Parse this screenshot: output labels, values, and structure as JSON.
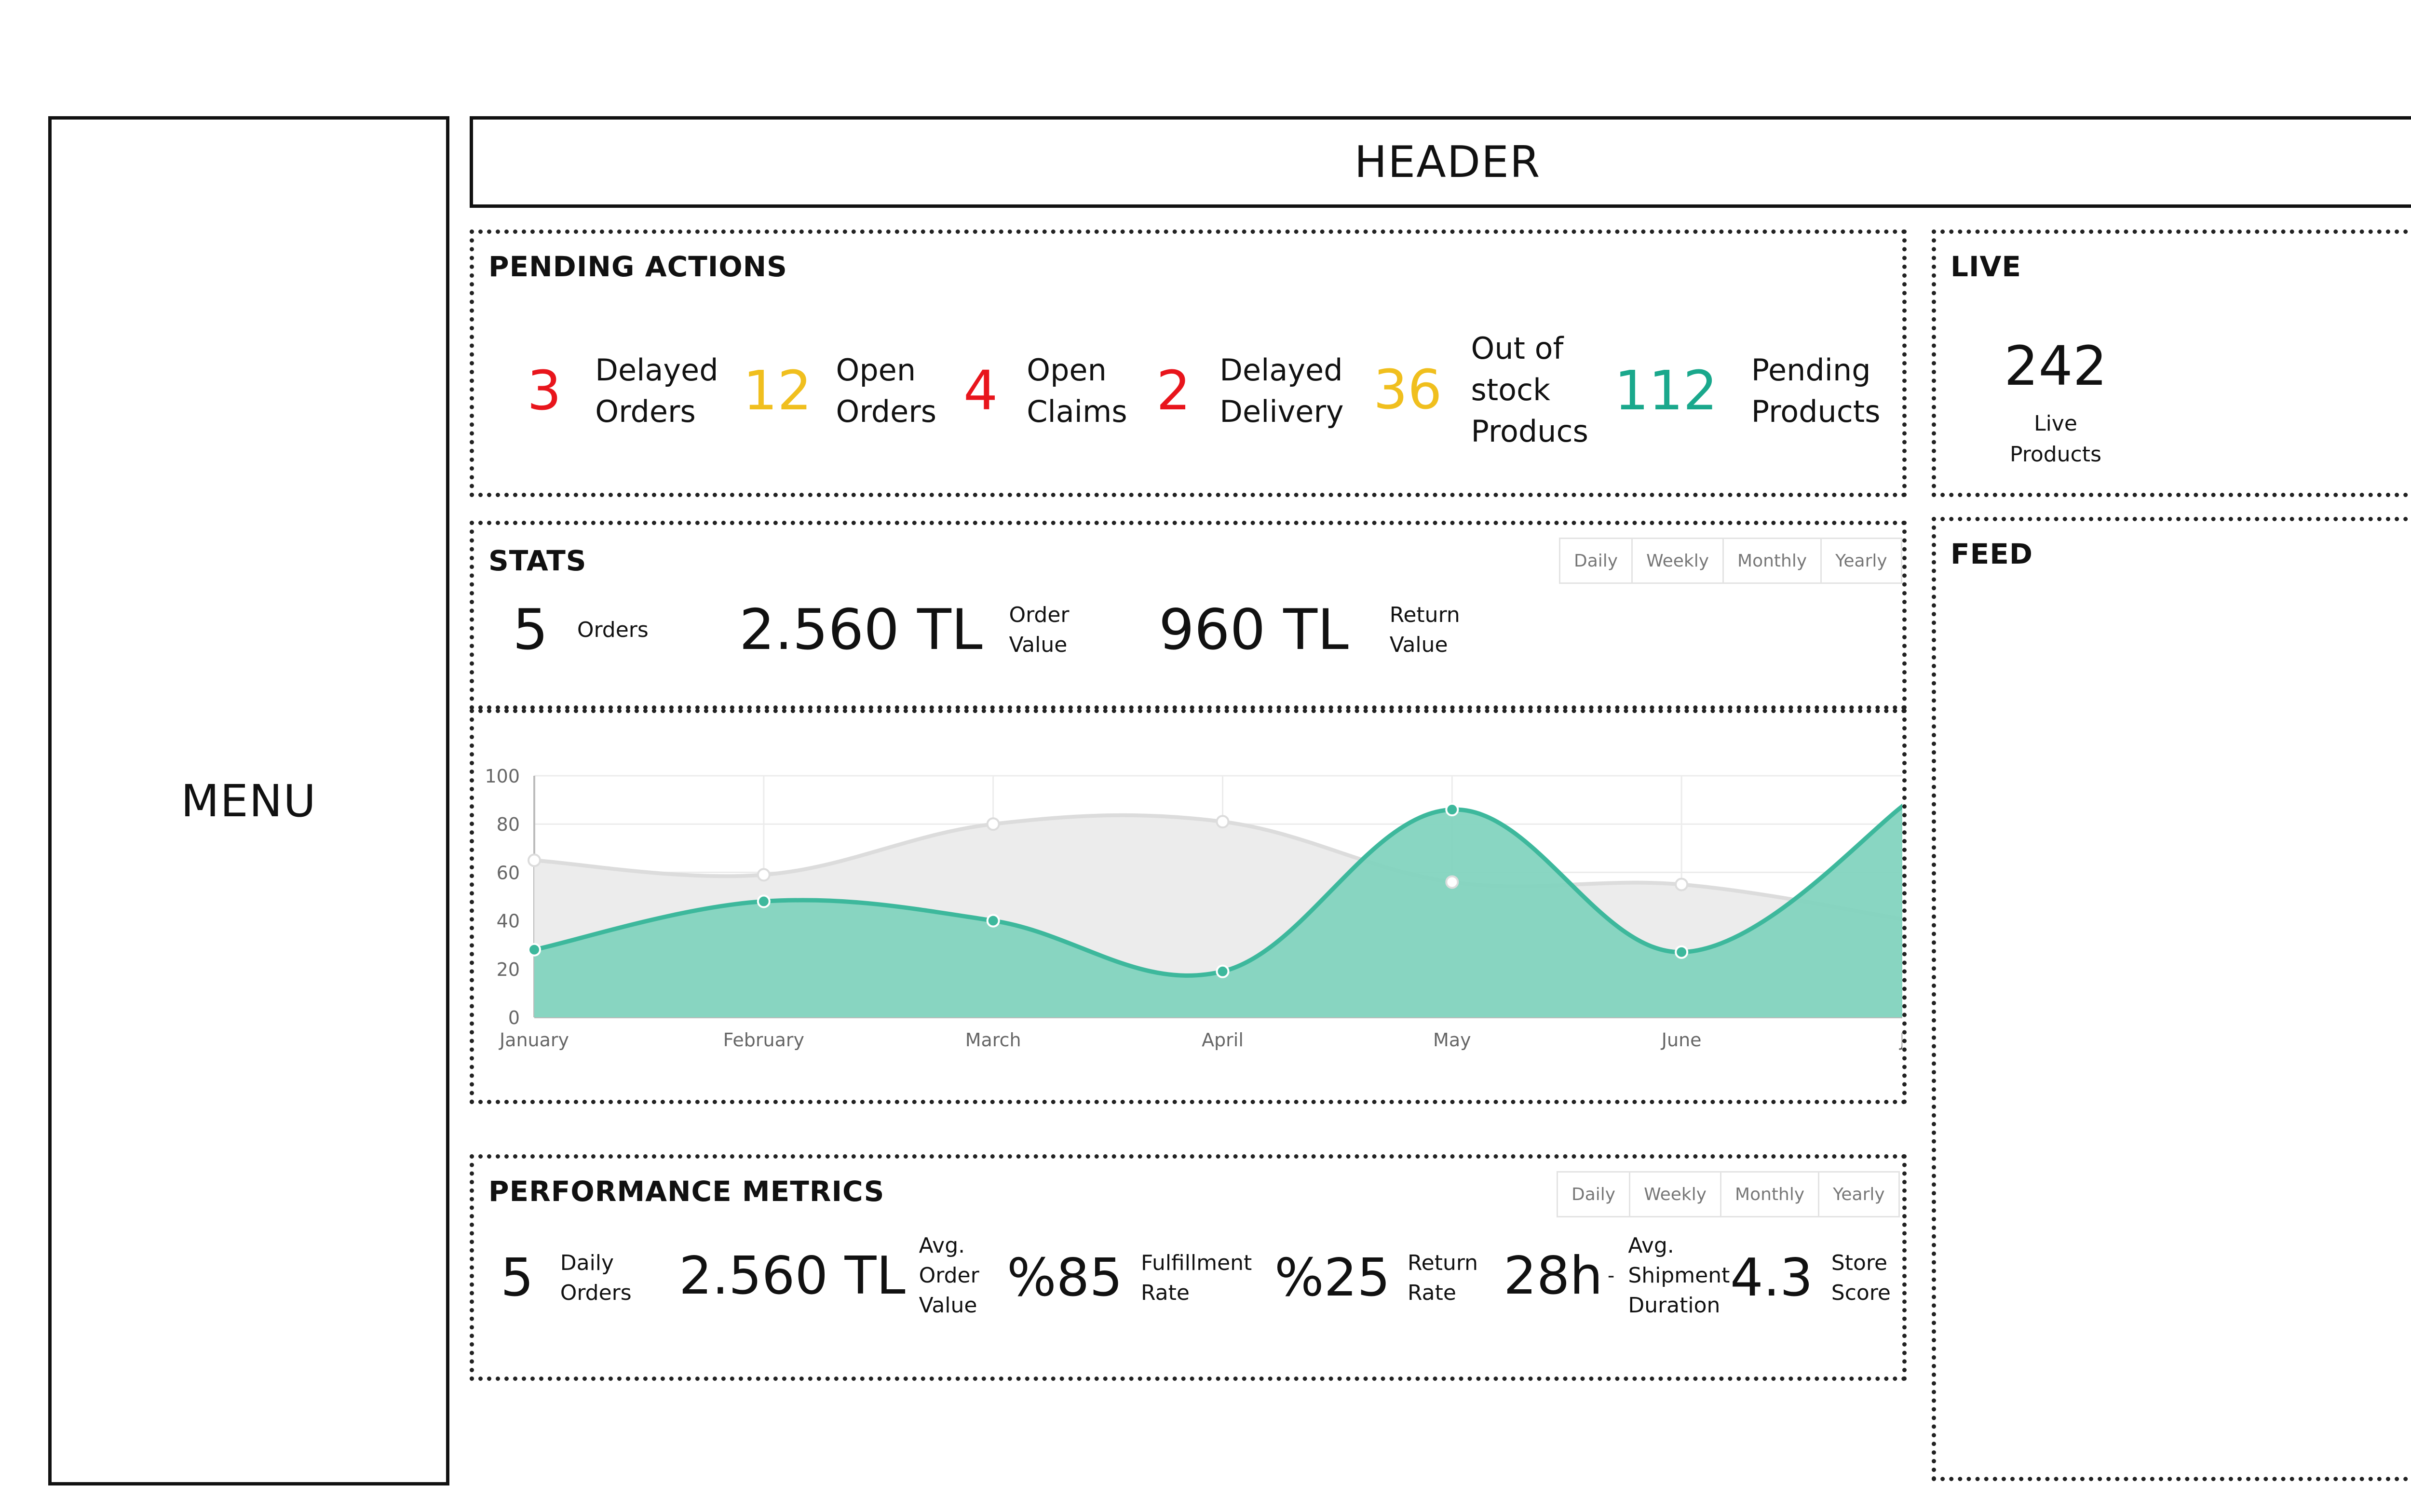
{
  "menu": {
    "label": "MENU"
  },
  "header": {
    "label": "HEADER"
  },
  "pending_actions": {
    "title": "PENDING ACTIONS",
    "items": [
      {
        "value": "3",
        "label_line1": "Delayed",
        "label_line2": "Orders",
        "color": "#e8151c"
      },
      {
        "value": "12",
        "label_line1": "Open",
        "label_line2": "Orders",
        "color": "#f0bf1e"
      },
      {
        "value": "4",
        "label_line1": "Open",
        "label_line2": "Claims",
        "color": "#e8151c"
      },
      {
        "value": "2",
        "label_line1": "Delayed",
        "label_line2": "Delivery",
        "color": "#e8151c"
      },
      {
        "value": "36",
        "label_line1": "Out of",
        "label_line2": "stock",
        "label_line3": "Producs",
        "color": "#f0bf1e"
      },
      {
        "value": "112",
        "label_line1": "Pending",
        "label_line2": "Products",
        "color": "#1aa88c"
      }
    ]
  },
  "live": {
    "title": "LIVE",
    "value": "242",
    "label_line1": "Live",
    "label_line2": "Products"
  },
  "feed": {
    "title": "FEED"
  },
  "stats": {
    "title": "STATS",
    "periods": [
      "Daily",
      "Weekly",
      "Monthly",
      "Yearly"
    ],
    "orders_value": "5",
    "orders_label": "Orders",
    "order_value": "2.560 TL",
    "order_value_label_line1": "Order",
    "order_value_label_line2": "Value",
    "return_value": "960 TL",
    "return_value_label_line1": "Return",
    "return_value_label_line2": "Value"
  },
  "chart_data": {
    "type": "area",
    "categories": [
      "January",
      "February",
      "March",
      "April",
      "May",
      "June",
      "Jul"
    ],
    "ylim": [
      0,
      100
    ],
    "yticks": [
      0,
      20,
      40,
      60,
      80,
      100
    ],
    "grid": true,
    "series": [
      {
        "values": [
          65,
          59,
          80,
          81,
          56,
          55,
          40
        ],
        "line_color": "#dcdcdc",
        "fill_color": "#ececec"
      },
      {
        "values": [
          28,
          48,
          40,
          19,
          86,
          27,
          90
        ],
        "line_color": "#3db89c",
        "fill_color": "#7fd2bd"
      }
    ]
  },
  "performance": {
    "title": "PERFORMANCE METRICS",
    "periods": [
      "Daily",
      "Weekly",
      "Monthly",
      "Yearly"
    ],
    "daily_orders": {
      "value": "5",
      "line1": "Daily",
      "line2": "Orders"
    },
    "avg_order_value": {
      "value": "2.560 TL",
      "line1": "Avg.",
      "line2": "Order",
      "line3": "Value"
    },
    "fulfillment": {
      "value": "%85",
      "line1": "Fulfillment",
      "line2": "Rate"
    },
    "return_rate": {
      "value": "%25",
      "line1": "Return",
      "line2": "Rate"
    },
    "shipment": {
      "value": "28h",
      "separator": "-",
      "line1": "Avg.",
      "line2": "Shipment",
      "line3": "Duration"
    },
    "store_score": {
      "value": "4.3",
      "line1": "Store",
      "line2": "Score"
    }
  }
}
